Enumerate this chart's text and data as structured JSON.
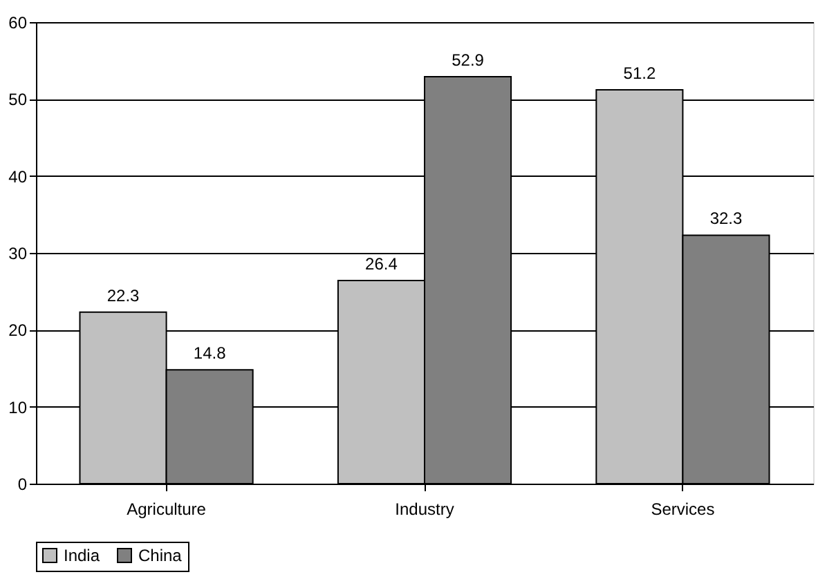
{
  "chart_data": {
    "type": "bar",
    "categories": [
      "Agriculture",
      "Industry",
      "Services"
    ],
    "series": [
      {
        "name": "India",
        "color": "#c0c0c0",
        "values": [
          22.3,
          26.4,
          51.2
        ]
      },
      {
        "name": "China",
        "color": "#808080",
        "values": [
          14.8,
          52.9,
          32.3
        ]
      }
    ],
    "ylim": [
      0,
      60
    ],
    "yticks": [
      0,
      10,
      20,
      30,
      40,
      50,
      60
    ],
    "grid": "y",
    "legend": "bottom",
    "data_labels": true
  }
}
